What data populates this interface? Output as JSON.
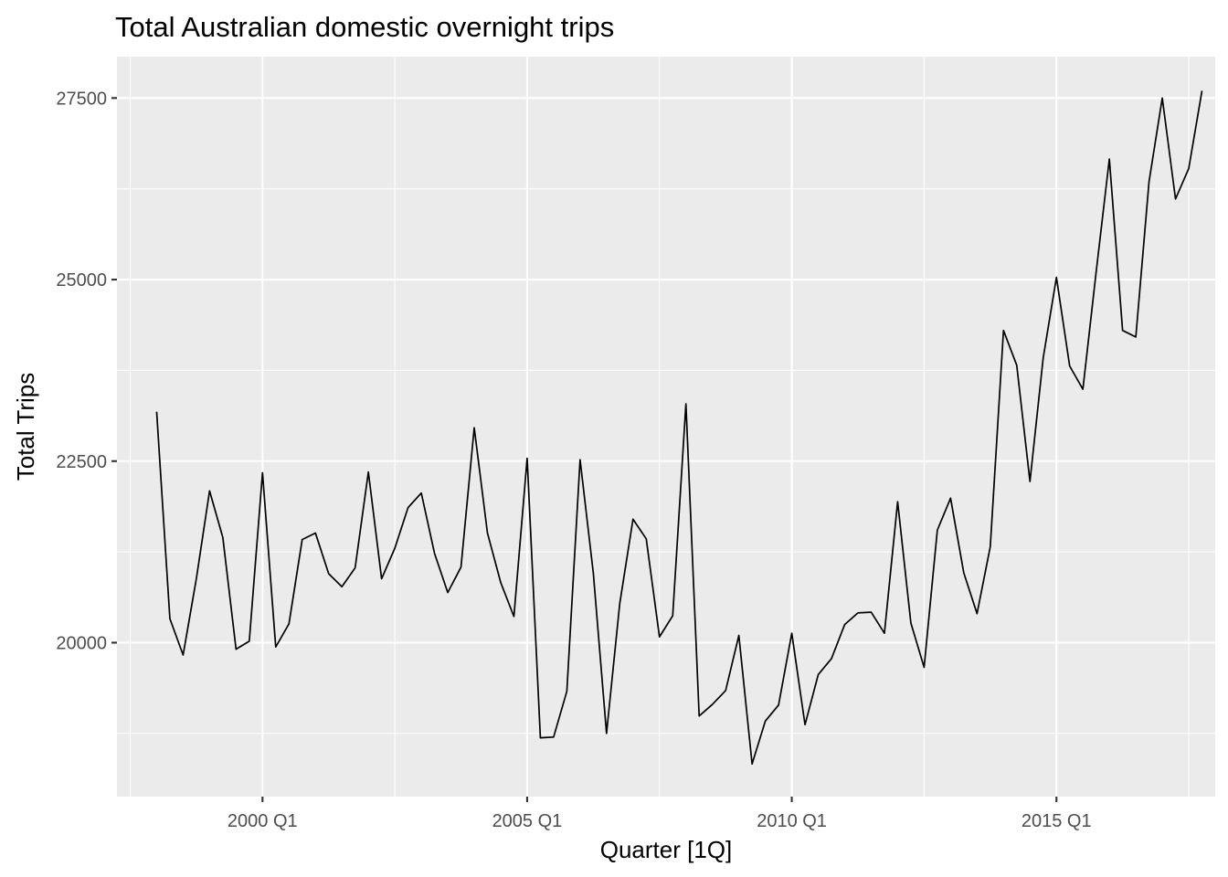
{
  "chart_data": {
    "type": "line",
    "title": "Total Australian domestic overnight trips",
    "xlabel": "Quarter [1Q]",
    "ylabel": "Total Trips",
    "x_start": "1998 Q1",
    "x_ticks": [
      "2000 Q1",
      "2005 Q1",
      "2010 Q1",
      "2015 Q1"
    ],
    "y_ticks": [
      20000,
      22500,
      25000,
      27500
    ],
    "xlim": [
      "1997 Q2",
      "2018 Q1"
    ],
    "ylim": [
      17880,
      28070
    ],
    "grid": true,
    "legend": "none",
    "colors": {
      "panel": "#ebebeb",
      "grid": "#ffffff",
      "line": "#000000",
      "tick_text": "#4d4d4d"
    },
    "series": [
      {
        "x": [
          "1998 Q1",
          "1998 Q2",
          "1998 Q3",
          "1998 Q4",
          "1999 Q1",
          "1999 Q2",
          "1999 Q3",
          "1999 Q4",
          "2000 Q1",
          "2000 Q2",
          "2000 Q3",
          "2000 Q4",
          "2001 Q1",
          "2001 Q2",
          "2001 Q3",
          "2001 Q4",
          "2002 Q1",
          "2002 Q2",
          "2002 Q3",
          "2002 Q4",
          "2003 Q1",
          "2003 Q2",
          "2003 Q3",
          "2003 Q4",
          "2004 Q1",
          "2004 Q2",
          "2004 Q3",
          "2004 Q4",
          "2005 Q1",
          "2005 Q2",
          "2005 Q3",
          "2005 Q4",
          "2006 Q1",
          "2006 Q2",
          "2006 Q3",
          "2006 Q4",
          "2007 Q1",
          "2007 Q2",
          "2007 Q3",
          "2007 Q4",
          "2008 Q1",
          "2008 Q2",
          "2008 Q3",
          "2008 Q4",
          "2009 Q1",
          "2009 Q2",
          "2009 Q3",
          "2009 Q4",
          "2010 Q1",
          "2010 Q2",
          "2010 Q3",
          "2010 Q4",
          "2011 Q1",
          "2011 Q2",
          "2011 Q3",
          "2011 Q4",
          "2012 Q1",
          "2012 Q2",
          "2012 Q3",
          "2012 Q4",
          "2013 Q1",
          "2013 Q2",
          "2013 Q3",
          "2013 Q4",
          "2014 Q1",
          "2014 Q2",
          "2014 Q3",
          "2014 Q4",
          "2015 Q1",
          "2015 Q2",
          "2015 Q3",
          "2015 Q4",
          "2016 Q1",
          "2016 Q2",
          "2016 Q3",
          "2016 Q4",
          "2017 Q1",
          "2017 Q2",
          "2017 Q3",
          "2017 Q4"
        ],
        "values": [
          23180,
          20330,
          19830,
          20880,
          22090,
          21450,
          19910,
          20020,
          22340,
          19940,
          20260,
          21420,
          21510,
          20950,
          20770,
          21030,
          22350,
          20880,
          21300,
          21860,
          22060,
          21230,
          20690,
          21040,
          22960,
          21510,
          20830,
          20360,
          22540,
          18690,
          18700,
          19330,
          22520,
          20960,
          18750,
          20540,
          21700,
          21430,
          20080,
          20370,
          23290,
          18990,
          19150,
          19340,
          20100,
          18330,
          18920,
          19140,
          20130,
          18870,
          19560,
          19780,
          20250,
          20410,
          20420,
          20130,
          21940,
          20270,
          19660,
          21550,
          21990,
          20960,
          20400,
          21320,
          24300,
          23820,
          22220,
          23920,
          25030,
          23810,
          23490,
          25100,
          26660,
          24300,
          24210,
          26350,
          27500,
          26110,
          26530,
          27600
        ]
      }
    ]
  }
}
